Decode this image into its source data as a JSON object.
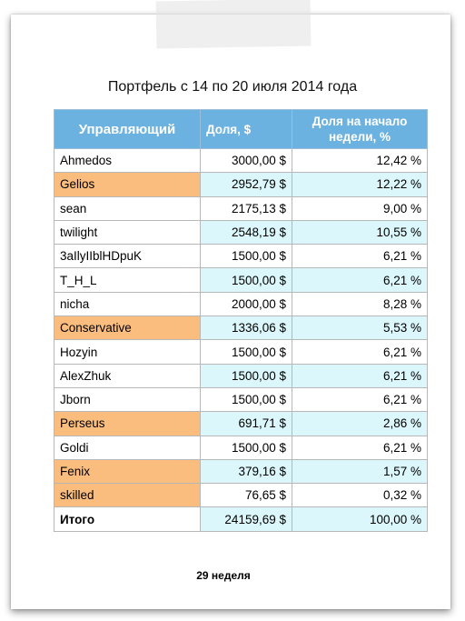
{
  "title": "Портфель с 14 по 20 июля 2014 года",
  "table": {
    "headers": {
      "manager": "Управляющий",
      "share": "Доля, $",
      "percent": "Доля на начало недели, %"
    },
    "rows": [
      {
        "name": "Ahmedos",
        "share": "3000,00 $",
        "percent": "12,42 %"
      },
      {
        "name": "Gelios",
        "share": "2952,79 $",
        "percent": "12,22 %"
      },
      {
        "name": "sean",
        "share": "2175,13 $",
        "percent": "9,00 %"
      },
      {
        "name": "twilight",
        "share": "2548,19 $",
        "percent": "10,55 %"
      },
      {
        "name": "3aIlyIIblHDpuK",
        "share": "1500,00 $",
        "percent": "6,21 %"
      },
      {
        "name": "T_H_L",
        "share": "1500,00 $",
        "percent": "6,21 %"
      },
      {
        "name": "nicha",
        "share": "2000,00 $",
        "percent": "8,28 %"
      },
      {
        "name": "Conservative",
        "share": "1336,06 $",
        "percent": "5,53 %"
      },
      {
        "name": "Hozyin",
        "share": "1500,00 $",
        "percent": "6,21 %"
      },
      {
        "name": "AlexZhuk",
        "share": "1500,00 $",
        "percent": "6,21 %"
      },
      {
        "name": "Jborn",
        "share": "1500,00 $",
        "percent": "6,21 %"
      },
      {
        "name": "Perseus",
        "share": "691,71 $",
        "percent": "2,86 %"
      },
      {
        "name": "Goldi",
        "share": "1500,00 $",
        "percent": "6,21 %"
      },
      {
        "name": "Fenix",
        "share": "379,16 $",
        "percent": "1,57 %"
      },
      {
        "name": "skilled",
        "share": "76,65 $",
        "percent": "0,32 %"
      }
    ],
    "total": {
      "name": "Итого",
      "share": "24159,69 $",
      "percent": "100,00 %"
    }
  },
  "footer": "29 неделя",
  "colors": {
    "header_bg": "#6cb2e1",
    "highlight_name": "#fbbd7e",
    "alt_row_values": "#dcf7fb"
  }
}
